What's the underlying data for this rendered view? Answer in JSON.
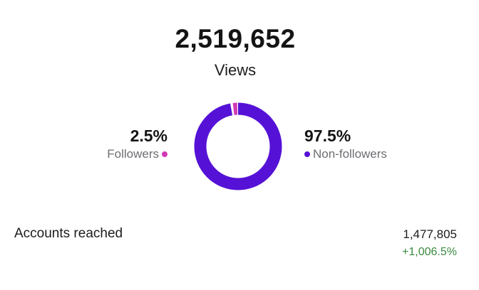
{
  "views": {
    "total": "2,519,652",
    "label": "Views"
  },
  "followers": {
    "percent_text": "2.5%",
    "percent": 2.5,
    "label": "Followers",
    "color": "#d13ab5"
  },
  "non_followers": {
    "percent_text": "97.5%",
    "percent": 97.5,
    "label": "Non-followers",
    "color": "#5512d6"
  },
  "accounts_reached": {
    "label": "Accounts reached",
    "value": "1,477,805",
    "change": "+1,006.5%",
    "change_color": "#3a8a3f"
  }
}
